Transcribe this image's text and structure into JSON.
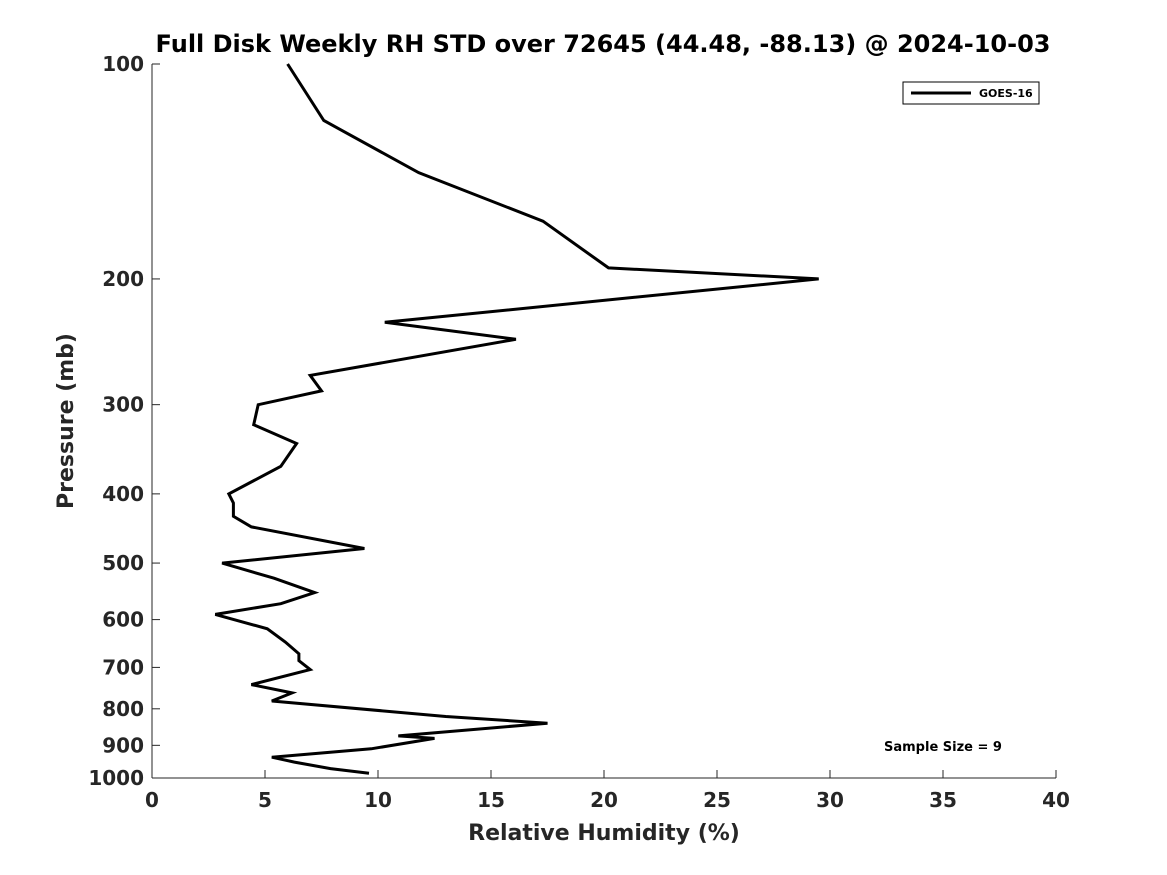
{
  "chart_data": {
    "type": "line",
    "title": "Full Disk Weekly RH STD over 72645 (44.48, -88.13) @ 2024-10-03",
    "xlabel": "Relative Humidity (%)",
    "ylabel": "Pressure (mb)",
    "xlim": [
      0,
      40
    ],
    "ylim": [
      1000,
      100
    ],
    "yscale": "log",
    "x_ticks": [
      0,
      5,
      10,
      15,
      20,
      25,
      30,
      35,
      40
    ],
    "x_tick_labels": [
      "0",
      "5",
      "10",
      "15",
      "20",
      "25",
      "30",
      "35",
      "40"
    ],
    "y_ticks": [
      100,
      200,
      300,
      400,
      500,
      600,
      700,
      800,
      900,
      1000
    ],
    "y_tick_labels": [
      "100",
      "200",
      "300",
      "400",
      "500",
      "600",
      "700",
      "800",
      "900",
      "1000"
    ],
    "grid": false,
    "legend_position": "top-right",
    "annotation": "Sample Size = 9",
    "series": [
      {
        "name": "GOES-16",
        "color": "#000000",
        "x": [
          6.0,
          7.6,
          11.8,
          17.3,
          20.2,
          29.5,
          10.3,
          16.1,
          7.0,
          7.5,
          4.7,
          4.5,
          6.4,
          5.7,
          3.4,
          3.6,
          3.6,
          4.4,
          9.4,
          3.1,
          5.4,
          7.2,
          5.7,
          2.8,
          5.1,
          5.9,
          6.5,
          6.5,
          7.0,
          4.4,
          6.2,
          5.3,
          13.0,
          17.5,
          10.9,
          12.5,
          9.7,
          5.3,
          6.3,
          7.9,
          9.6
        ],
        "y": [
          100,
          120,
          142,
          166,
          193,
          200,
          230,
          243,
          273,
          287,
          300,
          320,
          340,
          366,
          400,
          412,
          430,
          445,
          477,
          500,
          525,
          550,
          570,
          590,
          618,
          645,
          670,
          685,
          705,
          740,
          760,
          780,
          820,
          838,
          873,
          880,
          910,
          935,
          950,
          970,
          985
        ]
      }
    ]
  }
}
